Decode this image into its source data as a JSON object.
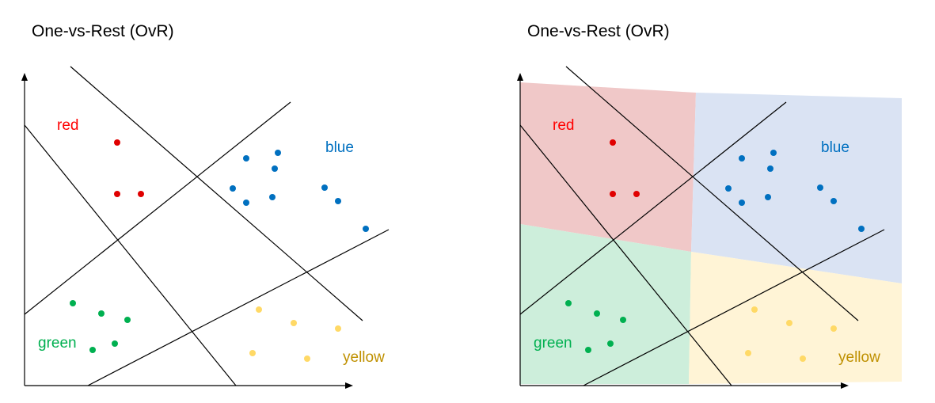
{
  "panels": [
    {
      "title": "One-vs-Rest (OvR)",
      "shaded": false
    },
    {
      "title": "One-vs-Rest (OvR)",
      "shaded": true
    }
  ],
  "classes": {
    "red": {
      "label": "red",
      "color": "#ff0000",
      "dot": "#e00000",
      "region": "#f0c8c8"
    },
    "blue": {
      "label": "blue",
      "color": "#0070c0",
      "dot": "#0070c0",
      "region": "#dae3f3"
    },
    "green": {
      "label": "green",
      "color": "#00b050",
      "dot": "#00b050",
      "region": "#cdeedb"
    },
    "yellow": {
      "label": "yellow",
      "color": "#bf9000",
      "dot": "#ffd966",
      "region": "#fff4d6"
    }
  }
}
